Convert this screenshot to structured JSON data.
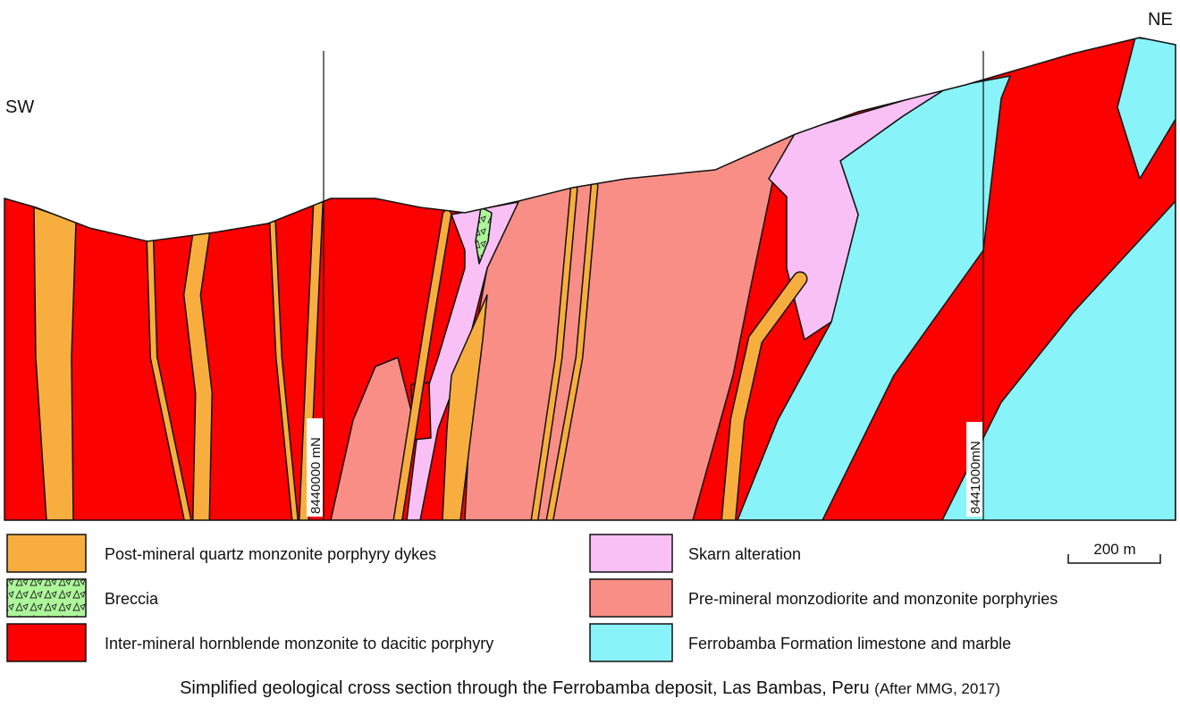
{
  "orientation": {
    "left": "SW",
    "right": "NE"
  },
  "gridlines": [
    {
      "label": "8440000 mN"
    },
    {
      "label": "8441000mN"
    }
  ],
  "scale_bar": {
    "label": "200 m"
  },
  "legend": [
    {
      "label": "Post-mineral quartz monzonite porphyry dykes"
    },
    {
      "label": "Breccia"
    },
    {
      "label": "Inter-mineral hornblende monzonite to dacitic porphyry"
    },
    {
      "label": "Skarn alteration"
    },
    {
      "label": "Pre-mineral monzodiorite and monzonite porphyries"
    },
    {
      "label": "Ferrobamba Formation limestone and marble"
    }
  ],
  "caption": {
    "text": "Simplified geological cross section through the Ferrobamba deposit, Las Bambas, Peru",
    "source": "(After MMG, 2017)"
  }
}
